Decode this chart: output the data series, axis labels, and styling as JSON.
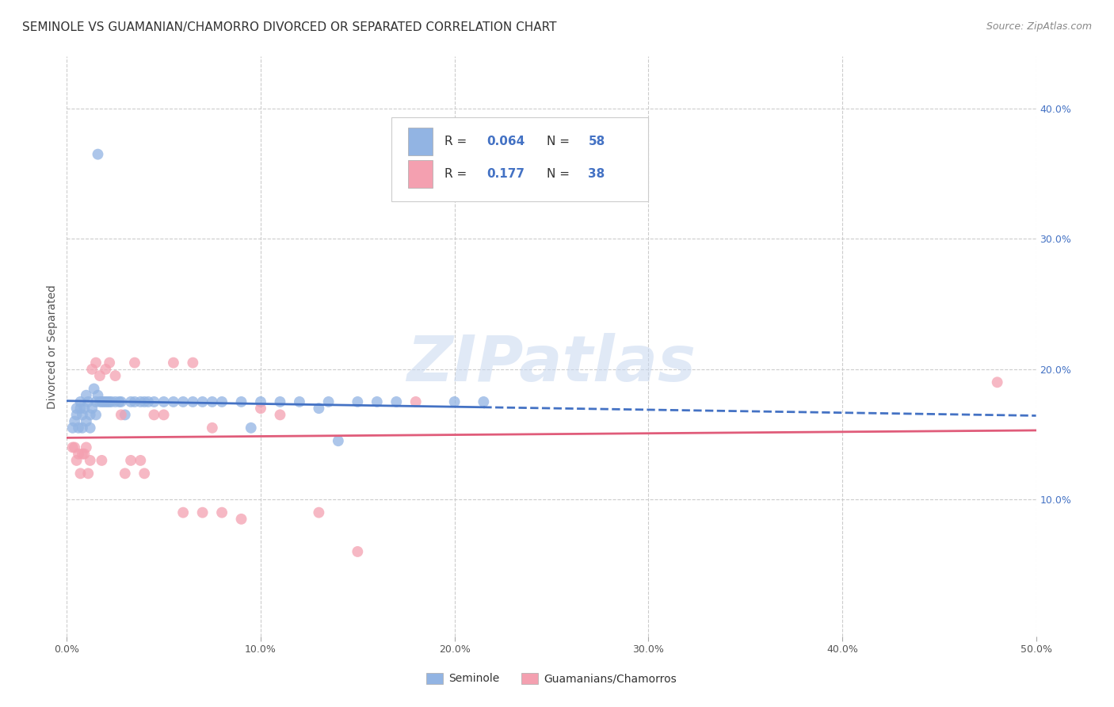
{
  "title": "SEMINOLE VS GUAMANIAN/CHAMORRO DIVORCED OR SEPARATED CORRELATION CHART",
  "source": "Source: ZipAtlas.com",
  "ylabel": "Divorced or Separated",
  "xlim": [
    0,
    0.5
  ],
  "ylim": [
    -0.005,
    0.44
  ],
  "xticks": [
    0.0,
    0.1,
    0.2,
    0.3,
    0.4,
    0.5
  ],
  "xtick_labels": [
    "0.0%",
    "10.0%",
    "20.0%",
    "30.0%",
    "40.0%",
    "50.0%"
  ],
  "yticks_right": [
    0.1,
    0.2,
    0.3,
    0.4
  ],
  "ytick_labels_right": [
    "10.0%",
    "20.0%",
    "30.0%",
    "40.0%"
  ],
  "seminole_color": "#92b4e3",
  "guamanian_color": "#f4a0b0",
  "seminole_line_color": "#4472c4",
  "guamanian_line_color": "#e05c7a",
  "watermark": "ZIPatlas",
  "legend_label_1": "Seminole",
  "legend_label_2": "Guamanians/Chamorros",
  "seminole_x": [
    0.003,
    0.004,
    0.005,
    0.005,
    0.006,
    0.007,
    0.007,
    0.008,
    0.008,
    0.009,
    0.01,
    0.01,
    0.011,
    0.012,
    0.012,
    0.013,
    0.014,
    0.015,
    0.015,
    0.016,
    0.017,
    0.018,
    0.019,
    0.02,
    0.021,
    0.022,
    0.023,
    0.025,
    0.027,
    0.028,
    0.03,
    0.033,
    0.035,
    0.038,
    0.04,
    0.042,
    0.045,
    0.05,
    0.055,
    0.06,
    0.065,
    0.07,
    0.075,
    0.08,
    0.09,
    0.095,
    0.1,
    0.11,
    0.12,
    0.13,
    0.135,
    0.14,
    0.15,
    0.16,
    0.17,
    0.2,
    0.215,
    0.016
  ],
  "seminole_y": [
    0.155,
    0.16,
    0.17,
    0.165,
    0.155,
    0.17,
    0.175,
    0.165,
    0.155,
    0.17,
    0.18,
    0.16,
    0.175,
    0.165,
    0.155,
    0.17,
    0.185,
    0.175,
    0.165,
    0.18,
    0.175,
    0.175,
    0.175,
    0.175,
    0.175,
    0.175,
    0.175,
    0.175,
    0.175,
    0.175,
    0.165,
    0.175,
    0.175,
    0.175,
    0.175,
    0.175,
    0.175,
    0.175,
    0.175,
    0.175,
    0.175,
    0.175,
    0.175,
    0.175,
    0.175,
    0.155,
    0.175,
    0.175,
    0.175,
    0.17,
    0.175,
    0.145,
    0.175,
    0.175,
    0.175,
    0.175,
    0.175,
    0.365
  ],
  "guamanian_x": [
    0.003,
    0.004,
    0.005,
    0.006,
    0.007,
    0.008,
    0.009,
    0.01,
    0.011,
    0.012,
    0.013,
    0.015,
    0.017,
    0.018,
    0.02,
    0.022,
    0.025,
    0.028,
    0.03,
    0.033,
    0.035,
    0.038,
    0.04,
    0.045,
    0.05,
    0.055,
    0.06,
    0.065,
    0.07,
    0.075,
    0.08,
    0.09,
    0.1,
    0.11,
    0.13,
    0.15,
    0.18,
    0.48
  ],
  "guamanian_y": [
    0.14,
    0.14,
    0.13,
    0.135,
    0.12,
    0.135,
    0.135,
    0.14,
    0.12,
    0.13,
    0.2,
    0.205,
    0.195,
    0.13,
    0.2,
    0.205,
    0.195,
    0.165,
    0.12,
    0.13,
    0.205,
    0.13,
    0.12,
    0.165,
    0.165,
    0.205,
    0.09,
    0.205,
    0.09,
    0.155,
    0.09,
    0.085,
    0.17,
    0.165,
    0.09,
    0.06,
    0.175,
    0.19
  ],
  "background_color": "#ffffff",
  "grid_color": "#cccccc",
  "title_fontsize": 11,
  "axis_label_fontsize": 10,
  "tick_fontsize": 9,
  "legend_R_color": "#4472c4",
  "legend_text_color": "#333333"
}
